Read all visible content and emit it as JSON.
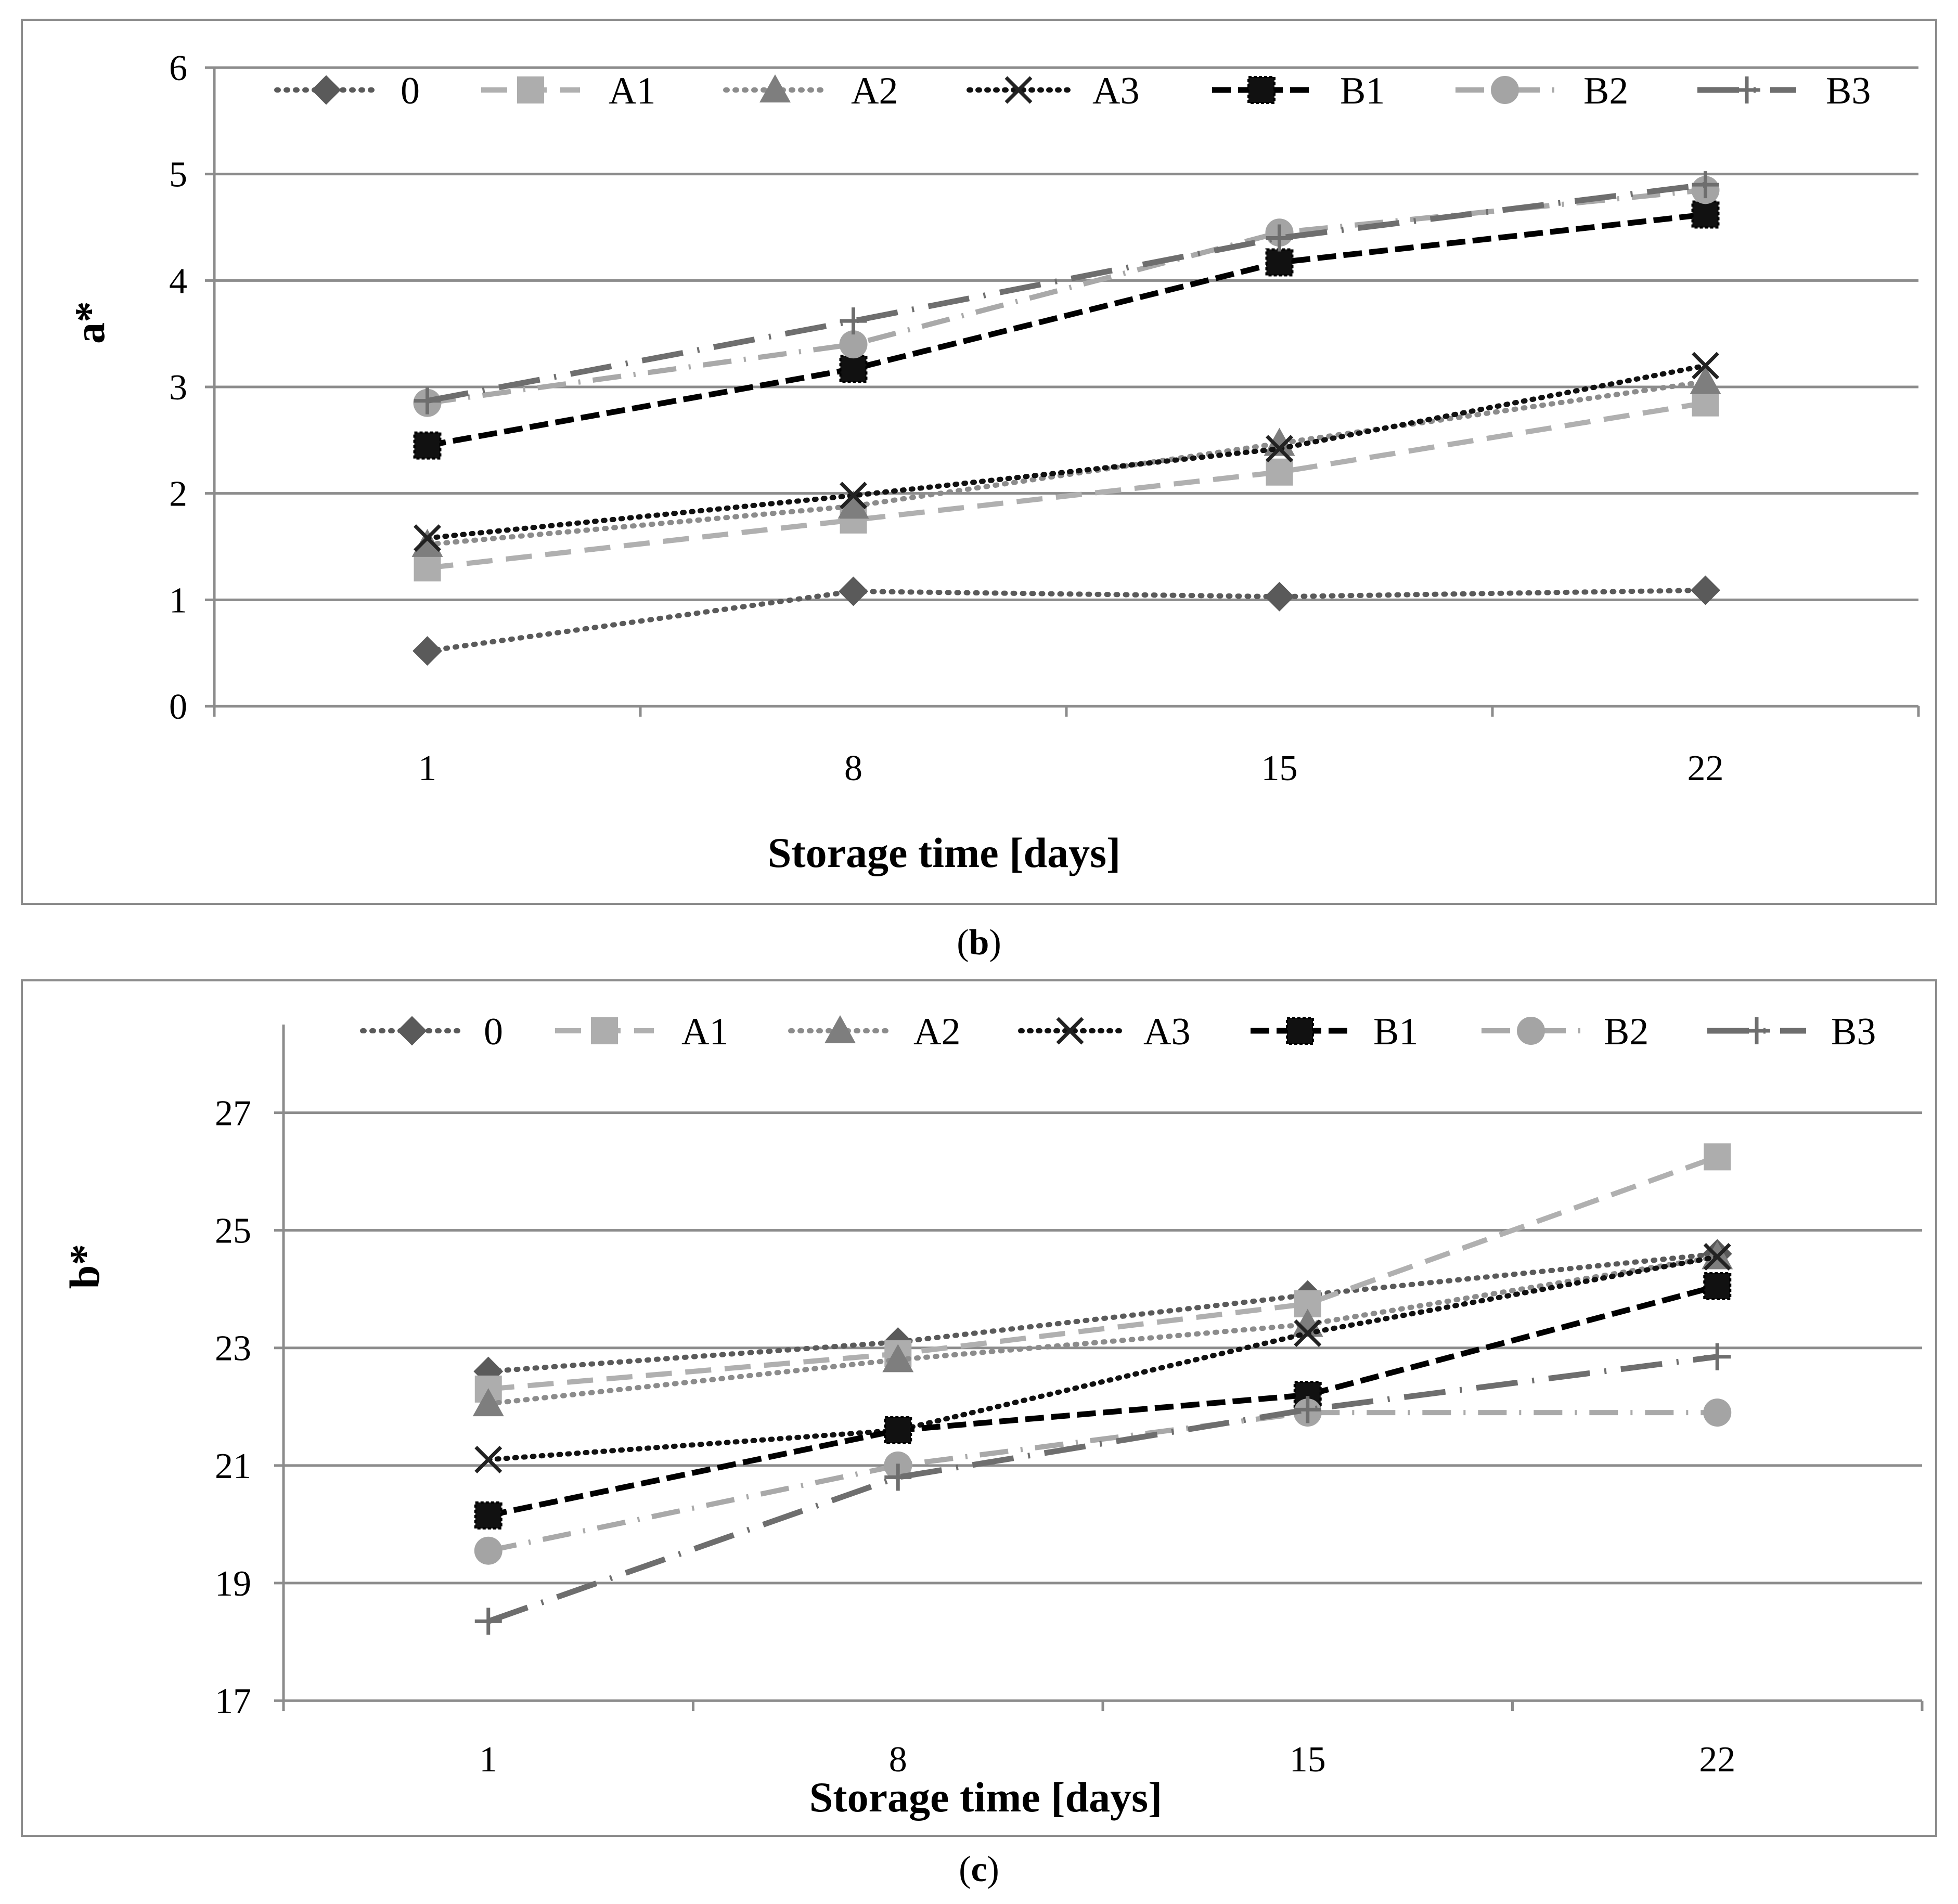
{
  "chart_data": [
    {
      "type": "line",
      "panel_label": "(b)",
      "panel_label_bold": "b",
      "xlabel": "Storage time [days]",
      "ylabel": "a*",
      "categories": [
        "1",
        "8",
        "15",
        "22"
      ],
      "ylim": [
        0,
        6
      ],
      "yticks": [
        "0",
        "1",
        "2",
        "3",
        "4",
        "5",
        "6"
      ],
      "grid": true,
      "legend_position": "top",
      "series": [
        {
          "name": "0",
          "values": [
            0.52,
            1.08,
            1.03,
            1.09
          ]
        },
        {
          "name": "A1",
          "values": [
            1.3,
            1.75,
            2.2,
            2.85
          ]
        },
        {
          "name": "A2",
          "values": [
            1.52,
            1.88,
            2.47,
            3.05
          ]
        },
        {
          "name": "A3",
          "values": [
            1.58,
            1.98,
            2.42,
            3.2
          ]
        },
        {
          "name": "B1",
          "values": [
            2.45,
            3.17,
            4.17,
            4.62
          ]
        },
        {
          "name": "B2",
          "values": [
            2.85,
            3.4,
            4.45,
            4.85
          ]
        },
        {
          "name": "B3",
          "values": [
            2.87,
            3.62,
            4.4,
            4.9
          ]
        }
      ]
    },
    {
      "type": "line",
      "panel_label": "(c)",
      "panel_label_bold": "c",
      "xlabel": "Storage time [days]",
      "ylabel": "b*",
      "categories": [
        "1",
        "8",
        "15",
        "22"
      ],
      "ylim": [
        17,
        28.5
      ],
      "yticks": [
        "17",
        "19",
        "21",
        "23",
        "25",
        "27"
      ],
      "grid": true,
      "legend_position": "top",
      "series": [
        {
          "name": "0",
          "values": [
            22.6,
            23.1,
            23.9,
            24.6
          ]
        },
        {
          "name": "A1",
          "values": [
            22.3,
            22.9,
            23.75,
            26.25
          ]
        },
        {
          "name": "A2",
          "values": [
            22.05,
            22.8,
            23.4,
            24.55
          ]
        },
        {
          "name": "A3",
          "values": [
            21.1,
            21.6,
            23.25,
            24.55
          ]
        },
        {
          "name": "B1",
          "values": [
            20.15,
            21.6,
            22.2,
            24.05
          ]
        },
        {
          "name": "B2",
          "values": [
            19.55,
            21.0,
            21.9,
            21.9
          ]
        },
        {
          "name": "B3",
          "values": [
            18.35,
            20.8,
            21.95,
            22.85
          ]
        }
      ]
    }
  ]
}
